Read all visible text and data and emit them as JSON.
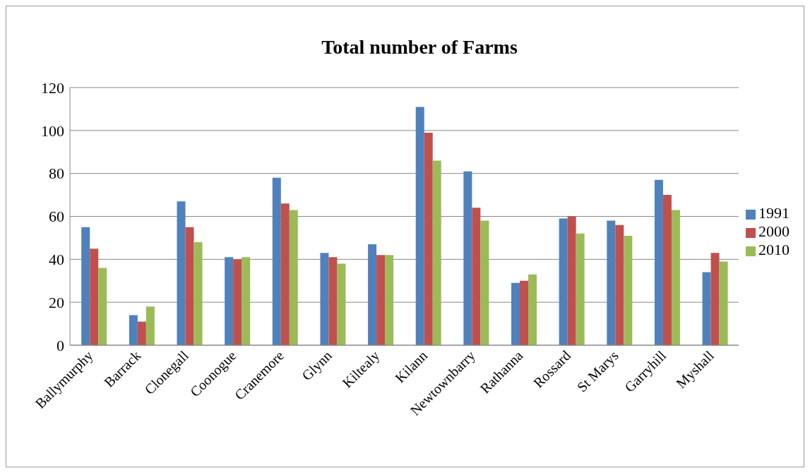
{
  "chart_data": {
    "type": "bar",
    "title": "Total number of Farms",
    "categories": [
      "Ballymurphy",
      "Barrack",
      "Clonegall",
      "Coonogue",
      "Cranemore",
      "Glynn",
      "Kiltealy",
      "Kilann",
      "Newtownbarry",
      "Rathanna",
      "Rossard",
      "St Marys",
      "Garryhill",
      "Myshall"
    ],
    "series": [
      {
        "name": "1991",
        "color": "#4f81bd",
        "values": [
          55,
          14,
          67,
          41,
          78,
          43,
          47,
          111,
          81,
          29,
          59,
          58,
          77,
          34
        ]
      },
      {
        "name": "2000",
        "color": "#c0504d",
        "values": [
          45,
          11,
          55,
          40,
          66,
          41,
          42,
          99,
          64,
          30,
          60,
          56,
          70,
          43
        ]
      },
      {
        "name": "2010",
        "color": "#9bbb59",
        "values": [
          36,
          18,
          48,
          41,
          63,
          38,
          42,
          86,
          58,
          33,
          52,
          51,
          63,
          39
        ]
      }
    ],
    "ylim": [
      0,
      120
    ],
    "yticks": [
      0,
      20,
      40,
      60,
      80,
      100,
      120
    ],
    "grid": "y",
    "legend": "right"
  }
}
